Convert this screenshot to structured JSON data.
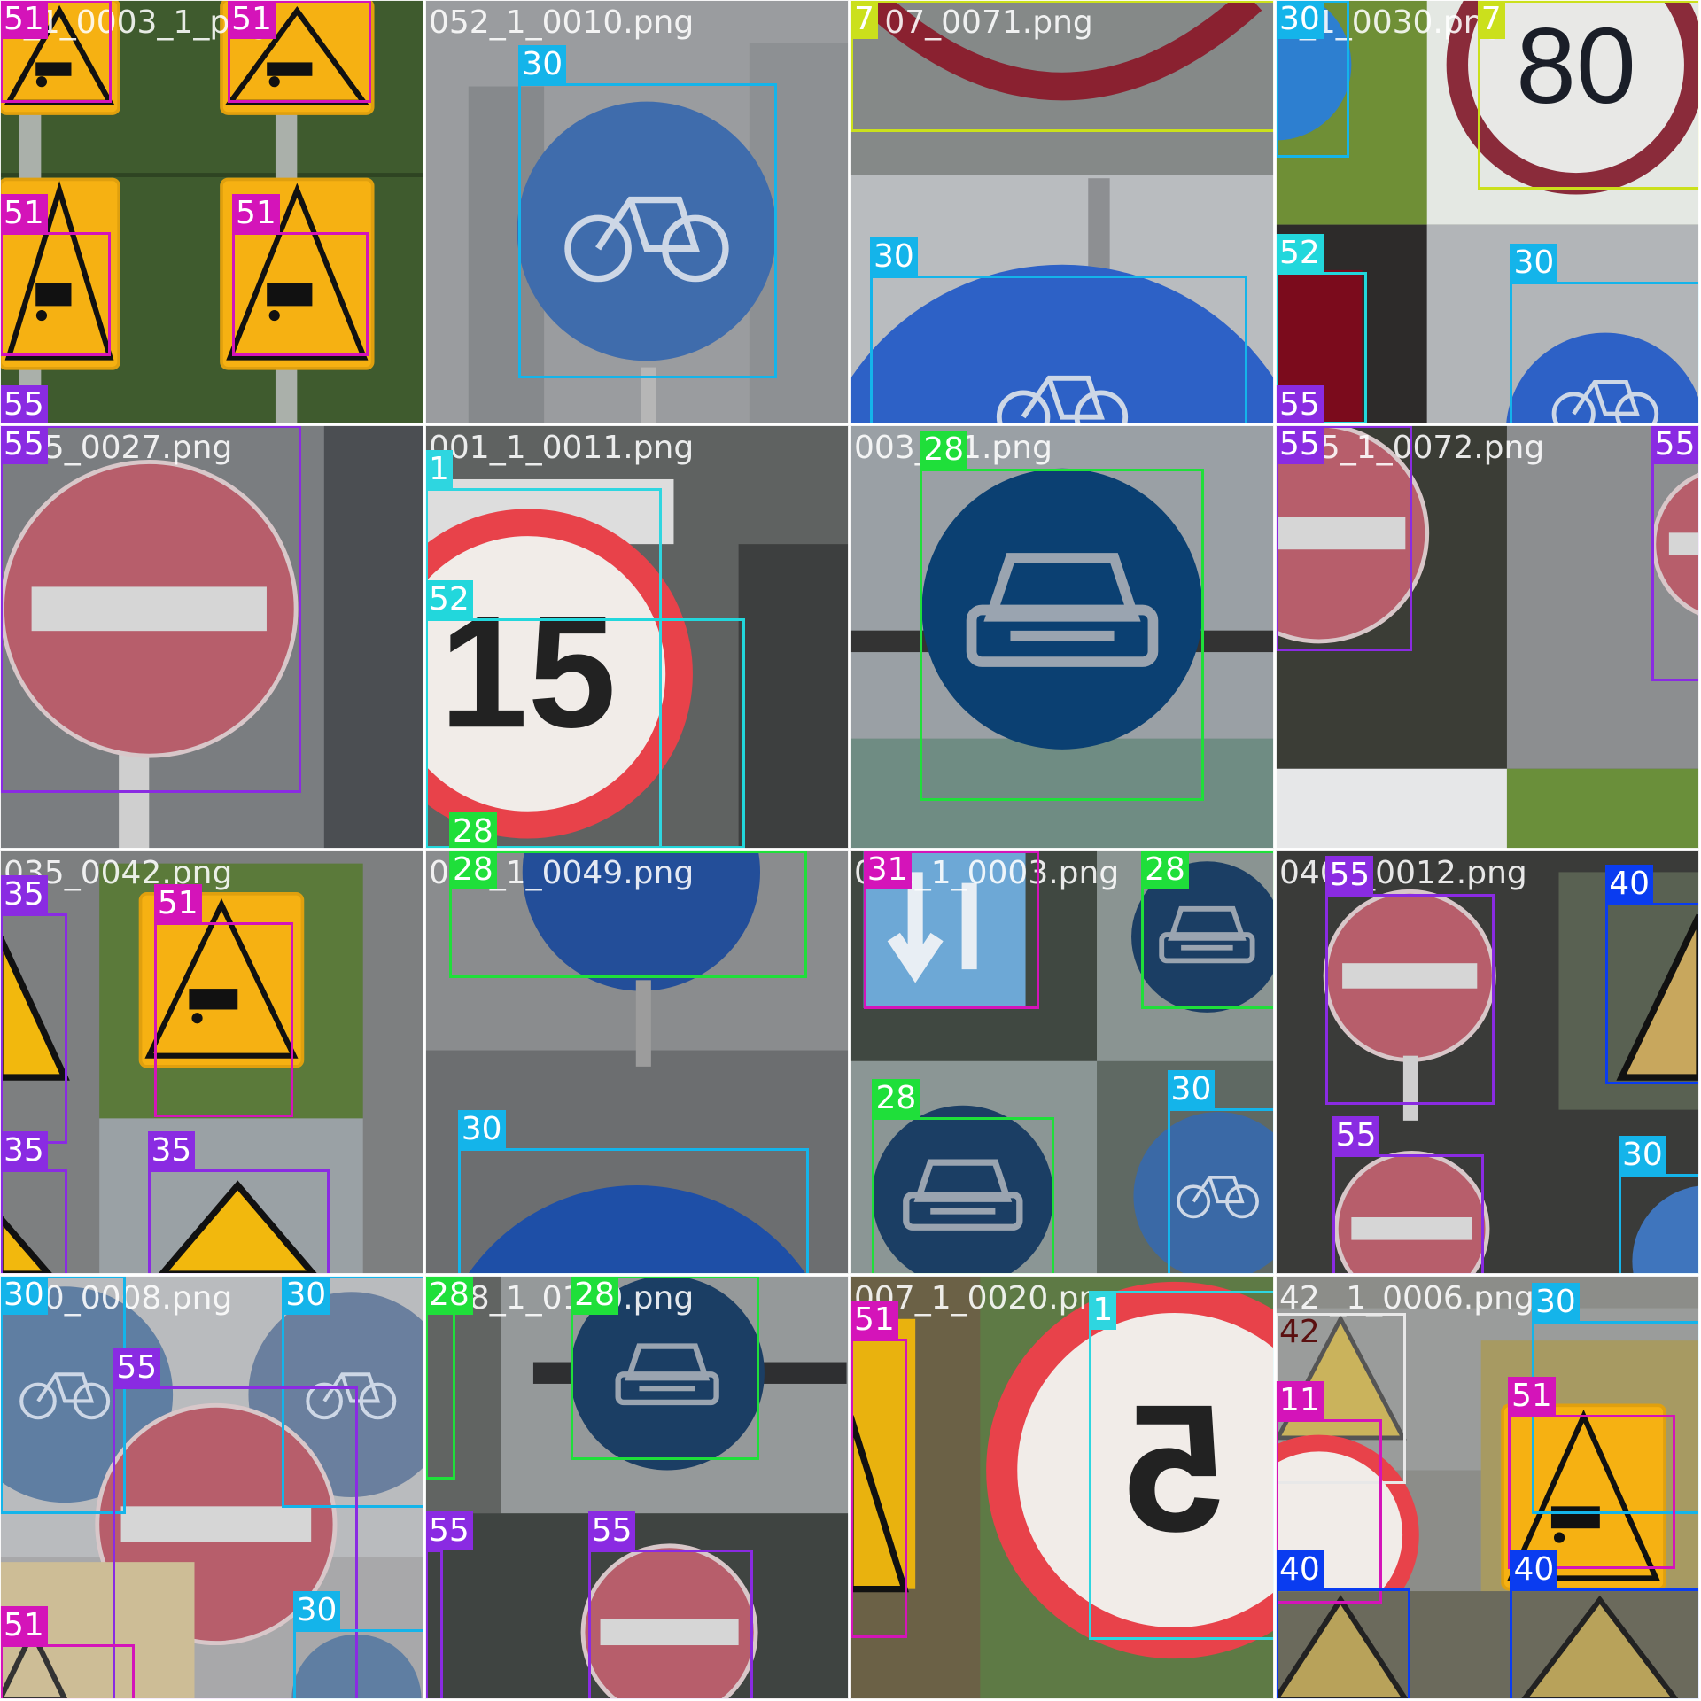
{
  "class_colors": {
    "1": "#2ed6e0",
    "7": "#cbe01c",
    "11": "#d414b9",
    "28": "#1fdf3a",
    "30": "#14b4ea",
    "31": "#d414b9",
    "35": "#8a2be2",
    "40": "#0a3cf0",
    "42": "#e8e8e8",
    "51": "#d414b9",
    "52": "#22d7dc",
    "55": "#8a2be2"
  },
  "tiles": [
    {
      "filename": "1_1_0003_1_png",
      "filename_shown": "1_1_0003_1_png",
      "scene": "yellow-warning-signs-over-grass",
      "boxes": [
        {
          "cls": "51",
          "label": "51"
        },
        {
          "cls": "51",
          "label": "51"
        },
        {
          "cls": "51",
          "label": "51"
        },
        {
          "cls": "51",
          "label": "51"
        },
        {
          "cls": "55",
          "label": "55"
        }
      ]
    },
    {
      "filename": "052_1_0010.png",
      "filename_shown": "052_1_0010.png",
      "scene": "blue-bicycle-sign",
      "boxes": [
        {
          "cls": "30",
          "label": "30"
        }
      ]
    },
    {
      "filename": "007_0071.png",
      "filename_shown": "7 07_0071.png",
      "scene": "red-ring-and-blue-circle",
      "boxes": [
        {
          "cls": "7",
          "label": "7"
        },
        {
          "cls": "30",
          "label": "30"
        }
      ]
    },
    {
      "filename": "0_1_0030.png",
      "filename_shown": "0_1_0030.png",
      "scene": "speed-80-and-bikes",
      "boxes": [
        {
          "cls": "30",
          "label": "30"
        },
        {
          "cls": "7",
          "label": "7"
        },
        {
          "cls": "52",
          "label": "52"
        },
        {
          "cls": "55",
          "label": "55"
        },
        {
          "cls": "30",
          "label": "30"
        }
      ]
    },
    {
      "filename": "055_0027.png",
      "filename_shown": "055_0027.png",
      "scene": "no-entry-sign",
      "boxes": [
        {
          "cls": "55",
          "label": "55"
        }
      ]
    },
    {
      "filename": "001_1_0011.png",
      "filename_shown": "001_1_0011.png",
      "scene": "speed-15-sign",
      "boxes": [
        {
          "cls": "1",
          "label": "1"
        },
        {
          "cls": "52",
          "label": "52"
        },
        {
          "cls": "28",
          "label": "28"
        }
      ]
    },
    {
      "filename": "003_1_0011.png",
      "filename_shown": "003_  11.png",
      "scene": "blue-car-sign",
      "boxes": [
        {
          "cls": "28",
          "label": "28"
        }
      ]
    },
    {
      "filename": "055_1_0072.png",
      "filename_shown": "055_1_0072.png",
      "scene": "no-entry-partial",
      "boxes": [
        {
          "cls": "55",
          "label": "55"
        },
        {
          "cls": "55",
          "label": "55"
        }
      ]
    },
    {
      "filename": "035_0042.png",
      "filename_shown": "035_0042.png",
      "scene": "warning-mix",
      "boxes": [
        {
          "cls": "35",
          "label": "35"
        },
        {
          "cls": "51",
          "label": "51"
        },
        {
          "cls": "35",
          "label": "35"
        },
        {
          "cls": "35",
          "label": "35"
        }
      ]
    },
    {
      "filename": "028_1_0049.png",
      "filename_shown": "028_1_0049.png",
      "scene": "blue-sign-bottoms",
      "boxes": [
        {
          "cls": "28",
          "label": "28"
        },
        {
          "cls": "30",
          "label": "30"
        }
      ]
    },
    {
      "filename": "031_1_0003.png",
      "filename_shown": "031_1_0003.png",
      "scene": "lane-and-car-signs",
      "boxes": [
        {
          "cls": "31",
          "label": "31"
        },
        {
          "cls": "28",
          "label": "28"
        },
        {
          "cls": "28",
          "label": "28"
        },
        {
          "cls": "30",
          "label": "30"
        }
      ]
    },
    {
      "filename": "040_1_0012.png",
      "filename_shown": "040 l_0012.png",
      "scene": "no-entry-and-warning",
      "boxes": [
        {
          "cls": "55",
          "label": "55"
        },
        {
          "cls": "40",
          "label": "40"
        },
        {
          "cls": "55",
          "label": "55"
        },
        {
          "cls": "30",
          "label": "30"
        }
      ]
    },
    {
      "filename": "030_0008.png",
      "filename_shown": "030_0008.png",
      "scene": "faded-mosaic",
      "boxes": [
        {
          "cls": "30",
          "label": "30"
        },
        {
          "cls": "30",
          "label": "30"
        },
        {
          "cls": "55",
          "label": "55"
        },
        {
          "cls": "51",
          "label": "51"
        },
        {
          "cls": "30",
          "label": "30"
        }
      ]
    },
    {
      "filename": "028_1_0110.png",
      "filename_shown": "028_1_0110.png",
      "scene": "car-and-no-entry",
      "boxes": [
        {
          "cls": "28",
          "label": "28"
        },
        {
          "cls": "28",
          "label": "28"
        },
        {
          "cls": "55",
          "label": "55"
        },
        {
          "cls": "55",
          "label": "55"
        }
      ]
    },
    {
      "filename": "007_1_0020.png",
      "filename_shown": "007_1_0020.png",
      "scene": "speed-5-mirrored",
      "boxes": [
        {
          "cls": "51",
          "label": "51"
        },
        {
          "cls": "1",
          "label": "1"
        }
      ]
    },
    {
      "filename": "042_1_0006.png",
      "filename_shown": "42 _1_0006.png",
      "scene": "faded-warning-mix",
      "boxes": [
        {
          "cls": "42",
          "label": "42"
        },
        {
          "cls": "30",
          "label": "30"
        },
        {
          "cls": "11",
          "label": "11"
        },
        {
          "cls": "51",
          "label": "51"
        },
        {
          "cls": "40",
          "label": "40"
        },
        {
          "cls": "40",
          "label": "40"
        }
      ]
    }
  ]
}
